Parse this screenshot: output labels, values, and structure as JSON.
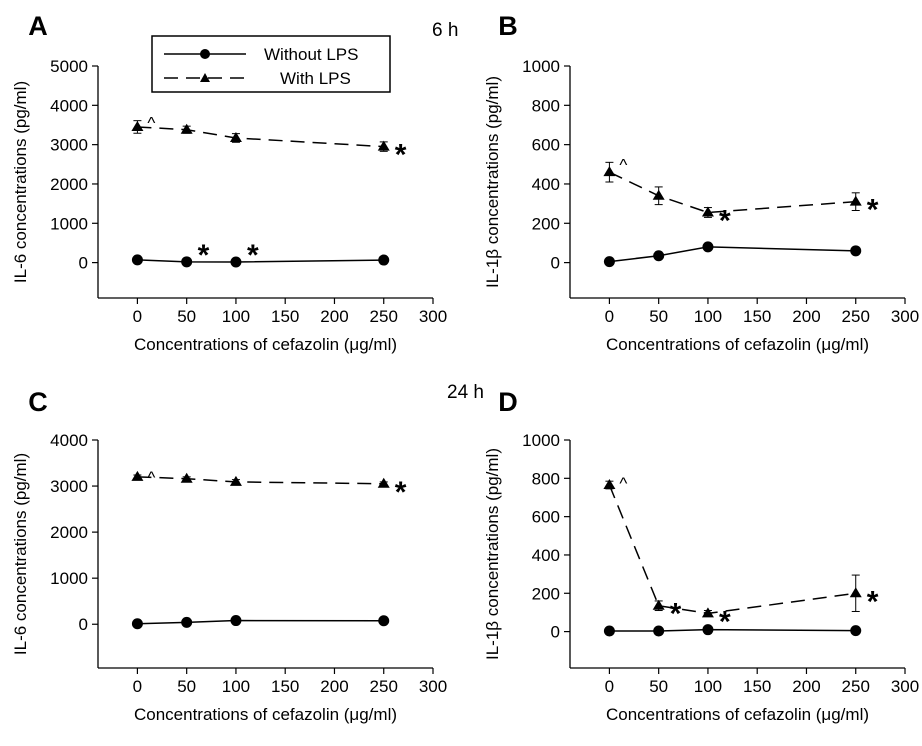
{
  "time_labels": [
    "6 h",
    "24 h"
  ],
  "legend": {
    "entries": [
      {
        "label": "Without LPS",
        "marker": "circle",
        "dash": "solid"
      },
      {
        "label": "With LPS",
        "marker": "triangle",
        "dash": "dashed"
      }
    ]
  },
  "chart_data": [
    {
      "panel": "A",
      "type": "line",
      "xlabel": "Concentrations of cefazolin (μg/ml)",
      "ylabel": "IL-6 concentrations (pg/ml)",
      "xlim": [
        -40,
        300
      ],
      "ylim": [
        -900,
        5000
      ],
      "xticks": [
        "0",
        "50",
        "100",
        "150",
        "200",
        "250",
        "300"
      ],
      "yticks": [
        "0",
        "1000",
        "2000",
        "3000",
        "4000",
        "5000"
      ],
      "x": [
        0,
        50,
        100,
        250
      ],
      "series": [
        {
          "name": "Without LPS",
          "values": [
            70,
            20,
            15,
            65
          ],
          "errors": [
            0,
            0,
            0,
            0
          ],
          "marks": [
            "",
            "*",
            "*",
            ""
          ]
        },
        {
          "name": "With LPS",
          "values": [
            3450,
            3380,
            3170,
            2950
          ],
          "errors": [
            160,
            90,
            110,
            120
          ],
          "marks": [
            "^",
            "",
            "",
            "*"
          ]
        }
      ]
    },
    {
      "panel": "B",
      "type": "line",
      "xlabel": "Concentrations of cefazolin (μg/ml)",
      "ylabel": "IL-1β concentrations (pg/ml)",
      "xlim": [
        -40,
        300
      ],
      "ylim": [
        -180,
        1000
      ],
      "xticks": [
        "0",
        "50",
        "100",
        "150",
        "200",
        "250",
        "300"
      ],
      "yticks": [
        "0",
        "200",
        "400",
        "600",
        "800",
        "1000"
      ],
      "x": [
        0,
        50,
        100,
        250
      ],
      "series": [
        {
          "name": "Without LPS",
          "values": [
            5,
            35,
            80,
            60
          ],
          "errors": [
            0,
            0,
            0,
            0
          ],
          "marks": [
            "",
            "",
            "",
            ""
          ]
        },
        {
          "name": "With LPS",
          "values": [
            460,
            340,
            255,
            310
          ],
          "errors": [
            50,
            45,
            25,
            45
          ],
          "marks": [
            "^",
            "",
            "*",
            "*"
          ]
        }
      ]
    },
    {
      "panel": "C",
      "type": "line",
      "xlabel": "Concentrations of cefazolin (μg/ml)",
      "ylabel": "IL-6 concentrations (pg/ml)",
      "xlim": [
        -40,
        300
      ],
      "ylim": [
        -950,
        4000
      ],
      "xticks": [
        "0",
        "50",
        "100",
        "150",
        "200",
        "250",
        "300"
      ],
      "yticks": [
        "0",
        "1000",
        "2000",
        "3000",
        "4000"
      ],
      "x": [
        0,
        50,
        100,
        250
      ],
      "series": [
        {
          "name": "Without LPS",
          "values": [
            10,
            40,
            80,
            75
          ],
          "errors": [
            0,
            0,
            0,
            0
          ],
          "marks": [
            "",
            "",
            "",
            ""
          ]
        },
        {
          "name": "With LPS",
          "values": [
            3200,
            3160,
            3090,
            3050
          ],
          "errors": [
            40,
            40,
            50,
            40
          ],
          "marks": [
            "^",
            "",
            "",
            "*"
          ]
        }
      ]
    },
    {
      "panel": "D",
      "type": "line",
      "xlabel": "Concentrations of cefazolin (μg/ml)",
      "ylabel": "IL-1β concentrations (pg/ml)",
      "xlim": [
        -40,
        300
      ],
      "ylim": [
        -190,
        1000
      ],
      "xticks": [
        "0",
        "50",
        "100",
        "150",
        "200",
        "250",
        "300"
      ],
      "yticks": [
        "0",
        "200",
        "400",
        "600",
        "800",
        "1000"
      ],
      "x": [
        0,
        50,
        100,
        250
      ],
      "series": [
        {
          "name": "Without LPS",
          "values": [
            3,
            3,
            10,
            5
          ],
          "errors": [
            0,
            0,
            0,
            0
          ],
          "marks": [
            "",
            "",
            "",
            ""
          ]
        },
        {
          "name": "With LPS",
          "values": [
            765,
            135,
            95,
            200
          ],
          "errors": [
            20,
            25,
            15,
            95
          ],
          "marks": [
            "^",
            "*",
            "*",
            "*"
          ]
        }
      ]
    }
  ]
}
